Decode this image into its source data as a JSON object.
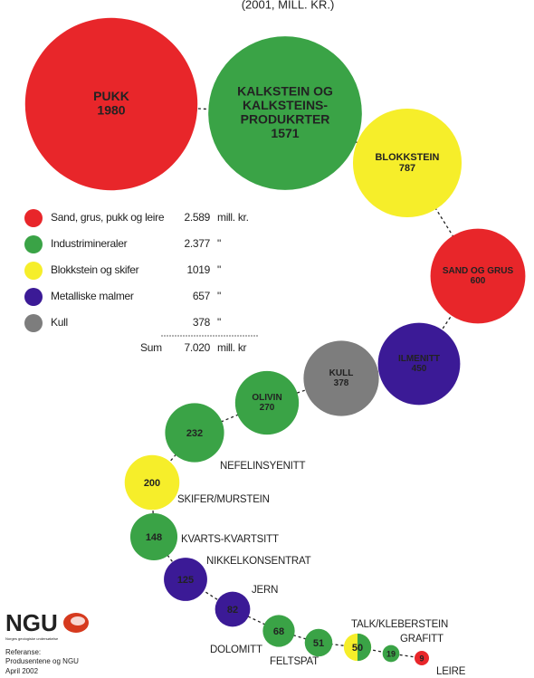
{
  "chart_data": {
    "type": "bubble",
    "subtitle": "(2001, MILL. KR.)",
    "bubbles": [
      {
        "label": [
          "PUKK"
        ],
        "value": 1980,
        "color": "#e8262a"
      },
      {
        "label": [
          "KALKSTEIN OG",
          "KALKSTEINS-",
          "PRODUKRTER"
        ],
        "value": 1571,
        "color": "#3aa346"
      },
      {
        "label": [
          "BLOKKSTEIN"
        ],
        "value": 787,
        "color": "#f6ee2a"
      },
      {
        "label": [
          "SAND OG GRUS"
        ],
        "value": 600,
        "color": "#e8262a"
      },
      {
        "label": [
          "ILMENITT"
        ],
        "value": 450,
        "color": "#3b1a96"
      },
      {
        "label": [
          "KULL"
        ],
        "value": 378,
        "color": "#7d7d7d"
      },
      {
        "label": [
          "OLIVIN"
        ],
        "value": 270,
        "color": "#3aa346"
      },
      {
        "label": [
          "NEFELINSYENITT"
        ],
        "value": 232,
        "color": "#3aa346"
      },
      {
        "label": [
          "SKIFER/MURSTEIN"
        ],
        "value": 200,
        "color": "#f6ee2a"
      },
      {
        "label": [
          "KVARTS-KVARTSITT"
        ],
        "value": 148,
        "color": "#3aa346"
      },
      {
        "label": [
          "NIKKELKONSENTRAT"
        ],
        "value": 125,
        "color": "#3b1a96"
      },
      {
        "label": [
          "JERN"
        ],
        "value": 82,
        "color": "#3b1a96"
      },
      {
        "label": [
          "DOLOMITT"
        ],
        "value": 68,
        "color": "#3aa346"
      },
      {
        "label": [
          "FELTSPAT"
        ],
        "value": 51,
        "color": "#3aa346"
      },
      {
        "label": [
          "TALK/KLEBERSTEIN"
        ],
        "value": 50,
        "color": "#f6ee2a",
        "color2": "#3aa346"
      },
      {
        "label": [
          "GRAFITT"
        ],
        "value": 19,
        "color": "#3aa346"
      },
      {
        "label": [
          "LEIRE"
        ],
        "value": 9,
        "color": "#e8262a"
      }
    ],
    "legend": [
      {
        "name": "Sand, grus, pukk og leire",
        "value": 2589,
        "value_label": "2.589",
        "unit": "mill. kr.",
        "color": "#e8262a"
      },
      {
        "name": "Industrimineraler",
        "value": 2377,
        "value_label": "2.377",
        "unit": "\"",
        "color": "#3aa346"
      },
      {
        "name": "Blokkstein og skifer",
        "value": 1019,
        "value_label": "1019",
        "unit": "\"",
        "color": "#f6ee2a"
      },
      {
        "name": "Metalliske malmer",
        "value": 657,
        "value_label": "657",
        "unit": "\"",
        "color": "#3b1a96"
      },
      {
        "name": "Kull",
        "value": 378,
        "value_label": "378",
        "unit": "\"",
        "color": "#7d7d7d"
      }
    ],
    "sum": {
      "name": "Sum",
      "value": 7020,
      "value_label": "7.020",
      "unit": "mill. kr"
    },
    "logo": "NGU",
    "logo_tagline": "Norges geologiske undersøkelse",
    "reference": [
      "Referanse:",
      "Produsentene og NGU",
      "April 2002"
    ]
  }
}
